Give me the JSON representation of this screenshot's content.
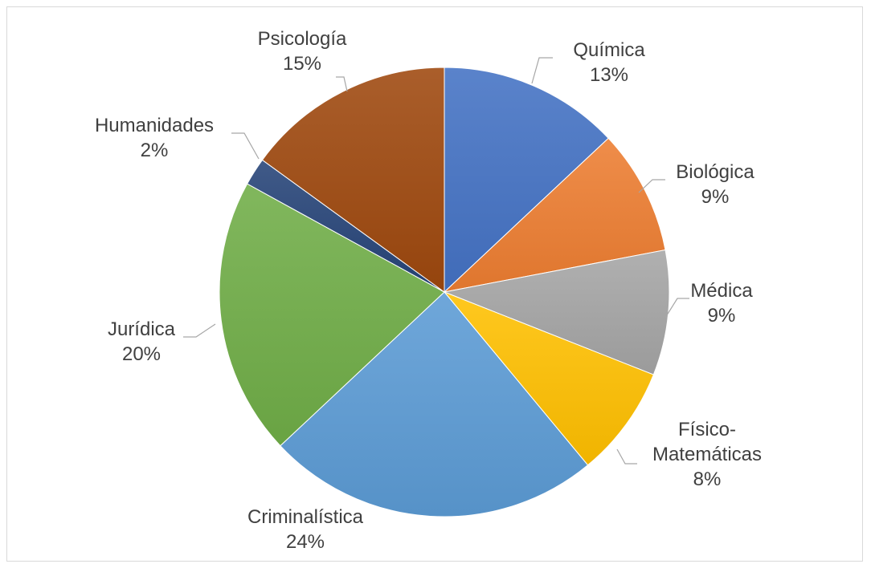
{
  "chart_data": {
    "type": "pie",
    "title": "",
    "slices": [
      {
        "label": "Química",
        "value": 13,
        "display": "13%",
        "color": "#4472c4"
      },
      {
        "label": "Biológica",
        "value": 9,
        "display": "9%",
        "color": "#ed7d31"
      },
      {
        "label": "Médica",
        "value": 9,
        "display": "9%",
        "color": "#a5a5a5"
      },
      {
        "label": "Físico-Matemáticas",
        "label_lines": [
          "Físico-",
          "Matemáticas"
        ],
        "value": 8,
        "display": "8%",
        "color": "#ffc000"
      },
      {
        "label": "Criminalística",
        "value": 24,
        "display": "24%",
        "color": "#5b9bd5"
      },
      {
        "label": "Jurídica",
        "value": 20,
        "display": "20%",
        "color": "#70ad47"
      },
      {
        "label": "Humanidades",
        "value": 2,
        "display": "2%",
        "color": "#264478"
      },
      {
        "label": "Psicología",
        "value": 15,
        "display": "15%",
        "color": "#9e480e"
      }
    ],
    "legend": "none",
    "data_labels": "outside with leader lines"
  }
}
